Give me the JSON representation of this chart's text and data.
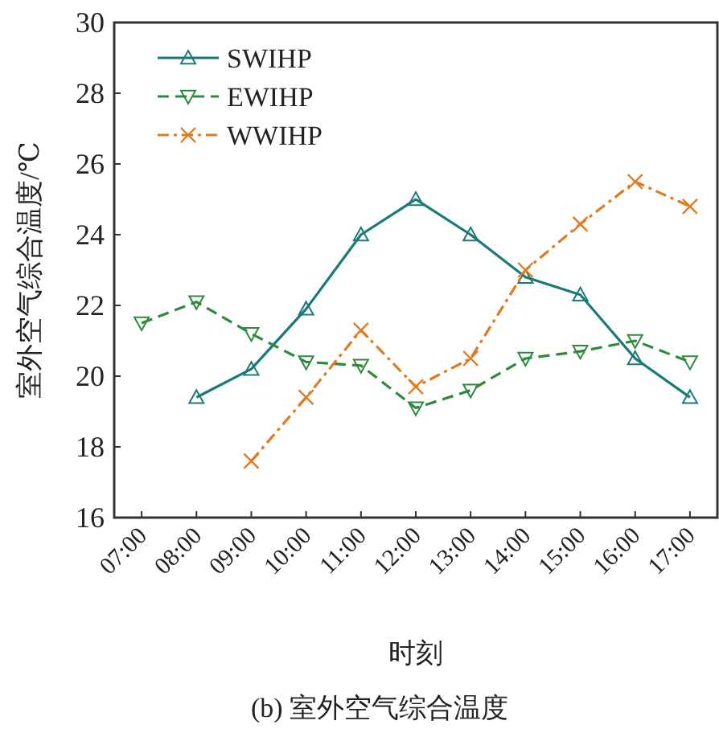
{
  "chart_data": {
    "type": "line",
    "xlabel": "时刻",
    "ylabel": "室外空气综合温度/℃",
    "annotations": [
      "(b) 室外空气综合温度"
    ],
    "categories": [
      "07:00",
      "08:00",
      "09:00",
      "10:00",
      "11:00",
      "12:00",
      "13:00",
      "14:00",
      "15:00",
      "16:00",
      "17:00"
    ],
    "ylim": [
      16,
      30
    ],
    "yticks": [
      16,
      18,
      20,
      22,
      24,
      26,
      28,
      30
    ],
    "grid": false,
    "legend": "top left",
    "series": [
      {
        "name": "SWIHP",
        "color": "#1a7a78",
        "marker": "triangle",
        "line_style": "solid",
        "values": [
          null,
          19.4,
          20.2,
          21.9,
          24.0,
          25.0,
          24.0,
          22.8,
          22.3,
          20.5,
          19.4
        ]
      },
      {
        "name": "EWIHP",
        "color": "#2e8b3e",
        "marker": "triangle",
        "line_style": "dashed",
        "values": [
          21.5,
          22.1,
          21.2,
          20.4,
          20.3,
          19.1,
          19.6,
          20.5,
          20.7,
          21.0,
          20.4
        ]
      },
      {
        "name": "WWIHP",
        "color": "#e07b22",
        "marker": "cross",
        "line_style": "dotted",
        "values": [
          null,
          null,
          17.6,
          19.4,
          21.3,
          19.7,
          20.5,
          23.0,
          24.3,
          25.5,
          24.8
        ]
      }
    ]
  }
}
